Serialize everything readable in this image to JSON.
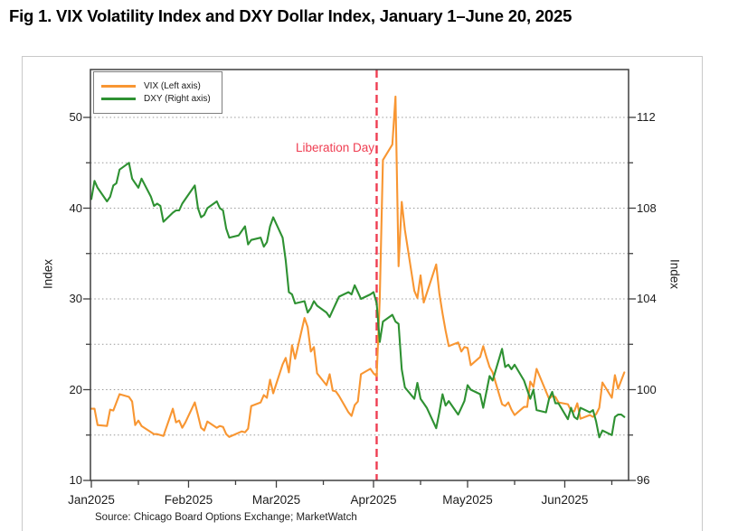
{
  "figure": {
    "title": "Fig 1. VIX Volatility Index and DXY Dollar Index, January 1–June 20, 2025",
    "source": "Source: Chicago Board Options Exchange; MarketWatch"
  },
  "chart_data": {
    "type": "line",
    "title": "Fig 1. VIX Volatility Index and DXY Dollar Index, January 1–June 20, 2025",
    "source": "Source: Chicago Board Options Exchange; MarketWatch",
    "grid": "dotted horizontal",
    "legend_position": "top-left",
    "x_axis": {
      "tick_labels": [
        "Jan2025",
        "Feb2025",
        "Mar2025",
        "Apr2025",
        "May2025",
        "Jun2025"
      ],
      "tick_days": [
        0,
        31,
        59,
        90,
        120,
        151
      ],
      "minor_tick_days": [
        15,
        46,
        74,
        105,
        135,
        166
      ],
      "range_days": [
        0,
        171
      ]
    },
    "left_axis": {
      "label": "Index",
      "ticks": [
        10,
        20,
        30,
        40,
        50
      ],
      "minor_ticks": [
        15,
        25,
        35,
        45
      ],
      "gridline_values": [
        15,
        20,
        25,
        30,
        35,
        40,
        45,
        50
      ],
      "range": [
        10,
        55.4
      ]
    },
    "right_axis": {
      "label": "Index",
      "ticks": [
        96,
        100,
        104,
        108,
        112
      ],
      "minor_ticks": [
        98,
        102,
        106,
        110
      ],
      "range": [
        96,
        114.2
      ]
    },
    "event_line": {
      "label": "Liberation Day",
      "date": "04-02",
      "color": "#ef3e52",
      "style": "dashed vertical"
    },
    "series": [
      {
        "name": "VIX (Left axis)",
        "axis": "left",
        "color": "#f89632",
        "points": [
          [
            "01-01",
            17.9
          ],
          [
            "01-02",
            17.9
          ],
          [
            "01-03",
            16.1
          ],
          [
            "01-06",
            16.0
          ],
          [
            "01-07",
            17.8
          ],
          [
            "01-08",
            17.7
          ],
          [
            "01-10",
            19.5
          ],
          [
            "01-13",
            19.2
          ],
          [
            "01-14",
            18.7
          ],
          [
            "01-15",
            16.1
          ],
          [
            "01-16",
            16.6
          ],
          [
            "01-17",
            16.0
          ],
          [
            "01-21",
            15.1
          ],
          [
            "01-22",
            15.1
          ],
          [
            "01-23",
            15.0
          ],
          [
            "01-24",
            14.9
          ],
          [
            "01-27",
            17.9
          ],
          [
            "01-28",
            16.4
          ],
          [
            "01-29",
            16.6
          ],
          [
            "01-30",
            15.8
          ],
          [
            "01-31",
            16.4
          ],
          [
            "02-03",
            18.6
          ],
          [
            "02-04",
            17.2
          ],
          [
            "02-05",
            15.8
          ],
          [
            "02-06",
            15.5
          ],
          [
            "02-07",
            16.5
          ],
          [
            "02-10",
            15.8
          ],
          [
            "02-11",
            16.0
          ],
          [
            "02-12",
            15.9
          ],
          [
            "02-13",
            15.1
          ],
          [
            "02-14",
            14.8
          ],
          [
            "02-18",
            15.4
          ],
          [
            "02-19",
            15.3
          ],
          [
            "02-20",
            15.7
          ],
          [
            "02-21",
            18.2
          ],
          [
            "02-24",
            18.6
          ],
          [
            "02-25",
            19.4
          ],
          [
            "02-26",
            19.1
          ],
          [
            "02-27",
            21.1
          ],
          [
            "02-28",
            19.6
          ],
          [
            "03-03",
            22.8
          ],
          [
            "03-04",
            23.5
          ],
          [
            "03-05",
            21.9
          ],
          [
            "03-06",
            24.9
          ],
          [
            "03-07",
            23.4
          ],
          [
            "03-10",
            27.9
          ],
          [
            "03-11",
            26.9
          ],
          [
            "03-12",
            24.2
          ],
          [
            "03-13",
            24.7
          ],
          [
            "03-14",
            21.8
          ],
          [
            "03-17",
            20.5
          ],
          [
            "03-18",
            21.7
          ],
          [
            "03-19",
            19.9
          ],
          [
            "03-20",
            19.8
          ],
          [
            "03-21",
            19.3
          ],
          [
            "03-24",
            17.5
          ],
          [
            "03-25",
            17.1
          ],
          [
            "03-26",
            18.3
          ],
          [
            "03-27",
            18.7
          ],
          [
            "03-28",
            21.7
          ],
          [
            "03-31",
            22.3
          ],
          [
            "04-01",
            21.8
          ],
          [
            "04-02",
            21.5
          ],
          [
            "04-03",
            30.0
          ],
          [
            "04-04",
            45.3
          ],
          [
            "04-07",
            47.0
          ],
          [
            "04-08",
            52.3
          ],
          [
            "04-09",
            33.6
          ],
          [
            "04-10",
            40.7
          ],
          [
            "04-11",
            37.6
          ],
          [
            "04-14",
            30.9
          ],
          [
            "04-15",
            30.1
          ],
          [
            "04-16",
            32.6
          ],
          [
            "04-17",
            29.6
          ],
          [
            "04-21",
            33.8
          ],
          [
            "04-22",
            30.6
          ],
          [
            "04-23",
            28.4
          ],
          [
            "04-24",
            26.5
          ],
          [
            "04-25",
            24.8
          ],
          [
            "04-28",
            25.2
          ],
          [
            "04-29",
            24.2
          ],
          [
            "04-30",
            24.7
          ],
          [
            "05-01",
            24.6
          ],
          [
            "05-02",
            22.7
          ],
          [
            "05-05",
            23.6
          ],
          [
            "05-06",
            24.8
          ],
          [
            "05-07",
            23.6
          ],
          [
            "05-08",
            22.5
          ],
          [
            "05-09",
            21.9
          ],
          [
            "05-12",
            18.4
          ],
          [
            "05-13",
            18.2
          ],
          [
            "05-14",
            18.6
          ],
          [
            "05-15",
            17.8
          ],
          [
            "05-16",
            17.2
          ],
          [
            "05-19",
            18.1
          ],
          [
            "05-20",
            18.1
          ],
          [
            "05-21",
            20.9
          ],
          [
            "05-22",
            20.3
          ],
          [
            "05-23",
            22.3
          ],
          [
            "05-27",
            19.0
          ],
          [
            "05-28",
            19.3
          ],
          [
            "05-29",
            19.2
          ],
          [
            "05-30",
            18.6
          ],
          [
            "06-02",
            18.4
          ],
          [
            "06-03",
            17.7
          ],
          [
            "06-04",
            17.6
          ],
          [
            "06-05",
            18.5
          ],
          [
            "06-06",
            16.8
          ],
          [
            "06-09",
            17.2
          ],
          [
            "06-10",
            17.0
          ],
          [
            "06-11",
            17.3
          ],
          [
            "06-12",
            18.0
          ],
          [
            "06-13",
            20.8
          ],
          [
            "06-16",
            19.1
          ],
          [
            "06-17",
            21.6
          ],
          [
            "06-18",
            20.1
          ],
          [
            "06-20",
            21.9
          ]
        ]
      },
      {
        "name": "DXY (Right axis)",
        "axis": "right",
        "color": "#2e9132",
        "points": [
          [
            "01-01",
            108.4
          ],
          [
            "01-02",
            109.2
          ],
          [
            "01-03",
            108.9
          ],
          [
            "01-06",
            108.3
          ],
          [
            "01-07",
            108.5
          ],
          [
            "01-08",
            109.0
          ],
          [
            "01-09",
            109.1
          ],
          [
            "01-10",
            109.7
          ],
          [
            "01-13",
            110.0
          ],
          [
            "01-14",
            109.3
          ],
          [
            "01-15",
            109.1
          ],
          [
            "01-16",
            108.9
          ],
          [
            "01-17",
            109.3
          ],
          [
            "01-20",
            108.5
          ],
          [
            "01-21",
            108.1
          ],
          [
            "01-22",
            108.2
          ],
          [
            "01-23",
            108.1
          ],
          [
            "01-24",
            107.4
          ],
          [
            "01-27",
            107.8
          ],
          [
            "01-28",
            107.9
          ],
          [
            "01-29",
            107.9
          ],
          [
            "01-30",
            108.2
          ],
          [
            "01-31",
            108.4
          ],
          [
            "02-03",
            109.0
          ],
          [
            "02-04",
            108.0
          ],
          [
            "02-05",
            107.6
          ],
          [
            "02-06",
            107.7
          ],
          [
            "02-07",
            108.0
          ],
          [
            "02-10",
            108.3
          ],
          [
            "02-11",
            108.0
          ],
          [
            "02-12",
            107.9
          ],
          [
            "02-13",
            107.1
          ],
          [
            "02-14",
            106.7
          ],
          [
            "02-17",
            106.8
          ],
          [
            "02-18",
            107.0
          ],
          [
            "02-19",
            107.2
          ],
          [
            "02-20",
            106.4
          ],
          [
            "02-21",
            106.6
          ],
          [
            "02-24",
            106.7
          ],
          [
            "02-25",
            106.3
          ],
          [
            "02-26",
            106.5
          ],
          [
            "02-27",
            107.2
          ],
          [
            "02-28",
            107.6
          ],
          [
            "03-03",
            106.7
          ],
          [
            "03-04",
            105.7
          ],
          [
            "03-05",
            104.3
          ],
          [
            "03-06",
            104.2
          ],
          [
            "03-07",
            103.8
          ],
          [
            "03-10",
            103.9
          ],
          [
            "03-11",
            103.4
          ],
          [
            "03-12",
            103.6
          ],
          [
            "03-13",
            103.9
          ],
          [
            "03-14",
            103.7
          ],
          [
            "03-17",
            103.4
          ],
          [
            "03-18",
            103.2
          ],
          [
            "03-19",
            103.5
          ],
          [
            "03-20",
            103.8
          ],
          [
            "03-21",
            104.1
          ],
          [
            "03-24",
            104.3
          ],
          [
            "03-25",
            104.2
          ],
          [
            "03-26",
            104.6
          ],
          [
            "03-27",
            104.3
          ],
          [
            "03-28",
            104.0
          ],
          [
            "03-31",
            104.2
          ],
          [
            "04-01",
            104.3
          ],
          [
            "04-02",
            103.8
          ],
          [
            "04-03",
            102.1
          ],
          [
            "04-04",
            103.0
          ],
          [
            "04-07",
            103.3
          ],
          [
            "04-08",
            103.0
          ],
          [
            "04-09",
            102.9
          ],
          [
            "04-10",
            100.9
          ],
          [
            "04-11",
            100.1
          ],
          [
            "04-14",
            99.6
          ],
          [
            "04-15",
            100.3
          ],
          [
            "04-16",
            99.6
          ],
          [
            "04-17",
            99.4
          ],
          [
            "04-18",
            99.2
          ],
          [
            "04-21",
            98.3
          ],
          [
            "04-22",
            99.0
          ],
          [
            "04-23",
            99.8
          ],
          [
            "04-24",
            99.3
          ],
          [
            "04-25",
            99.5
          ],
          [
            "04-28",
            98.9
          ],
          [
            "04-29",
            99.2
          ],
          [
            "04-30",
            99.5
          ],
          [
            "05-01",
            100.2
          ],
          [
            "05-02",
            100.0
          ],
          [
            "05-05",
            99.8
          ],
          [
            "05-06",
            99.2
          ],
          [
            "05-07",
            99.9
          ],
          [
            "05-08",
            100.6
          ],
          [
            "05-09",
            100.4
          ],
          [
            "05-12",
            101.8
          ],
          [
            "05-13",
            101.0
          ],
          [
            "05-14",
            101.1
          ],
          [
            "05-15",
            100.9
          ],
          [
            "05-16",
            101.1
          ],
          [
            "05-19",
            100.4
          ],
          [
            "05-20",
            100.0
          ],
          [
            "05-21",
            99.6
          ],
          [
            "05-22",
            100.0
          ],
          [
            "05-23",
            99.1
          ],
          [
            "05-26",
            99.0
          ],
          [
            "05-27",
            99.6
          ],
          [
            "05-28",
            99.9
          ],
          [
            "05-29",
            99.4
          ],
          [
            "05-30",
            99.4
          ],
          [
            "06-02",
            98.7
          ],
          [
            "06-03",
            99.2
          ],
          [
            "06-04",
            98.8
          ],
          [
            "06-05",
            98.7
          ],
          [
            "06-06",
            99.2
          ],
          [
            "06-09",
            99.0
          ],
          [
            "06-10",
            99.1
          ],
          [
            "06-11",
            98.6
          ],
          [
            "06-12",
            97.9
          ],
          [
            "06-13",
            98.2
          ],
          [
            "06-16",
            98.0
          ],
          [
            "06-17",
            98.8
          ],
          [
            "06-18",
            98.9
          ],
          [
            "06-19",
            98.9
          ],
          [
            "06-20",
            98.8
          ]
        ]
      }
    ],
    "style_colors": {
      "spine": "#3f3f3f",
      "gridline": "#9a9a9a",
      "tick_label": "#1c1c1c",
      "outer_border": "#c9c9c9"
    }
  }
}
